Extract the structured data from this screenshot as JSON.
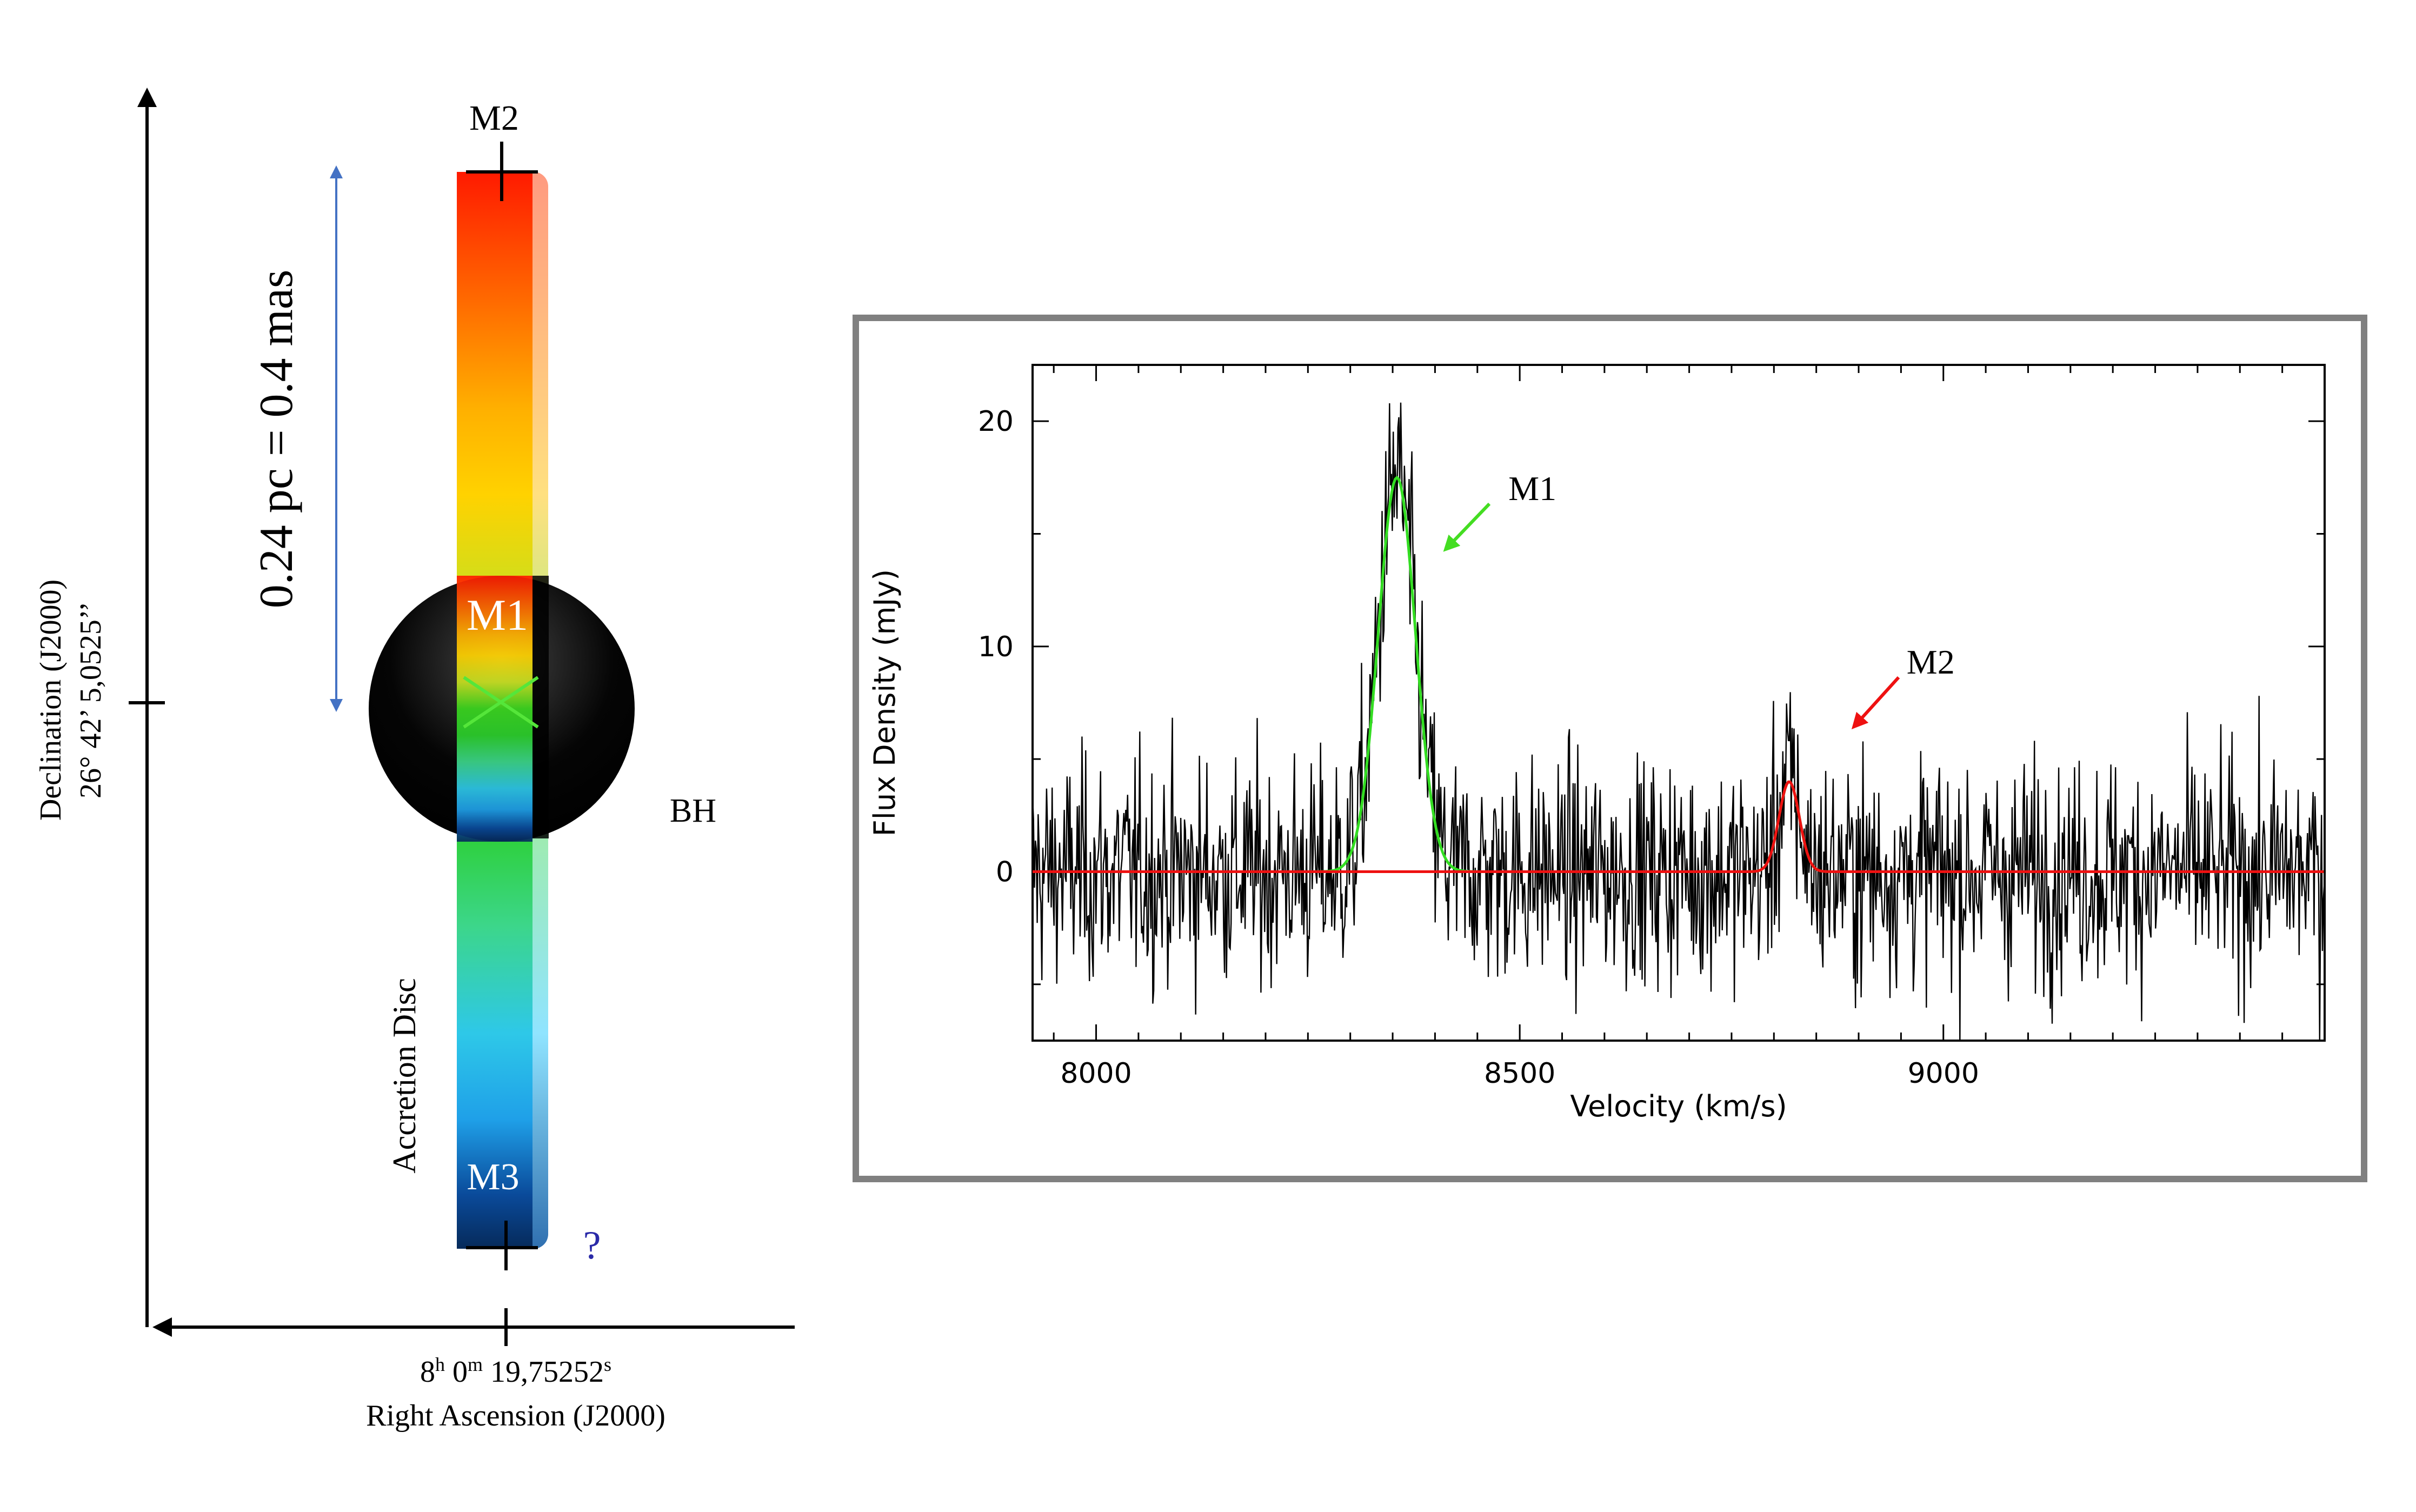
{
  "diagram": {
    "labels": {
      "m2": "M2",
      "m1": "M1",
      "m3": "M3",
      "bh": "BH",
      "question": "?",
      "scale": "0.24 pc = 0.4 mas",
      "disc": "Accretion Disc",
      "dec_title": "Declination (J2000)",
      "dec_value": "26° 42’ 5,0525’’",
      "ra_h": "8",
      "ra_h_unit": "h",
      "ra_m": " 0",
      "ra_m_unit": "m",
      "ra_s": " 19,75252",
      "ra_s_unit": "s",
      "ra_title": "Right Ascension (J2000)"
    },
    "colors": {
      "disc_gradient": [
        "#ff1a00",
        "#ff7a00",
        "#ffd000",
        "#c8e020",
        "#3ad61e",
        "#2bcf2b",
        "#3cd68a",
        "#2ec8e8",
        "#1fa8f0",
        "#0a4a9a",
        "#062a5a"
      ],
      "scale_arrow": "#4472c4",
      "question": "#2a2aa8",
      "cross": "#55e63a"
    }
  },
  "chart_data": {
    "type": "line",
    "xlabel": "Velocity (km/s)",
    "ylabel": "Flux Density (mJy)",
    "xlim": [
      7925,
      9450
    ],
    "ylim": [
      -7.5,
      22.5
    ],
    "xticks": [
      8000,
      8500,
      9000
    ],
    "yticks": [
      0,
      10,
      20
    ],
    "series": [
      {
        "name": "observed spectrum",
        "color": "#000000",
        "noise_rms": 2.5
      },
      {
        "name": "",
        "color": "#33dd22",
        "peak": 17.5,
        "center": 8355,
        "sigma": 22
      },
      {
        "name": "",
        "color": "#ee1111",
        "peak": 4.0,
        "center": 8818,
        "sigma": 12
      }
    ],
    "annotations": [
      {
        "label": "M1",
        "color": "#44dd22",
        "x": 8515,
        "y": 16.5
      },
      {
        "label": "M2",
        "color": "#ee1111",
        "x": 8985,
        "y": 8.8
      }
    ]
  }
}
